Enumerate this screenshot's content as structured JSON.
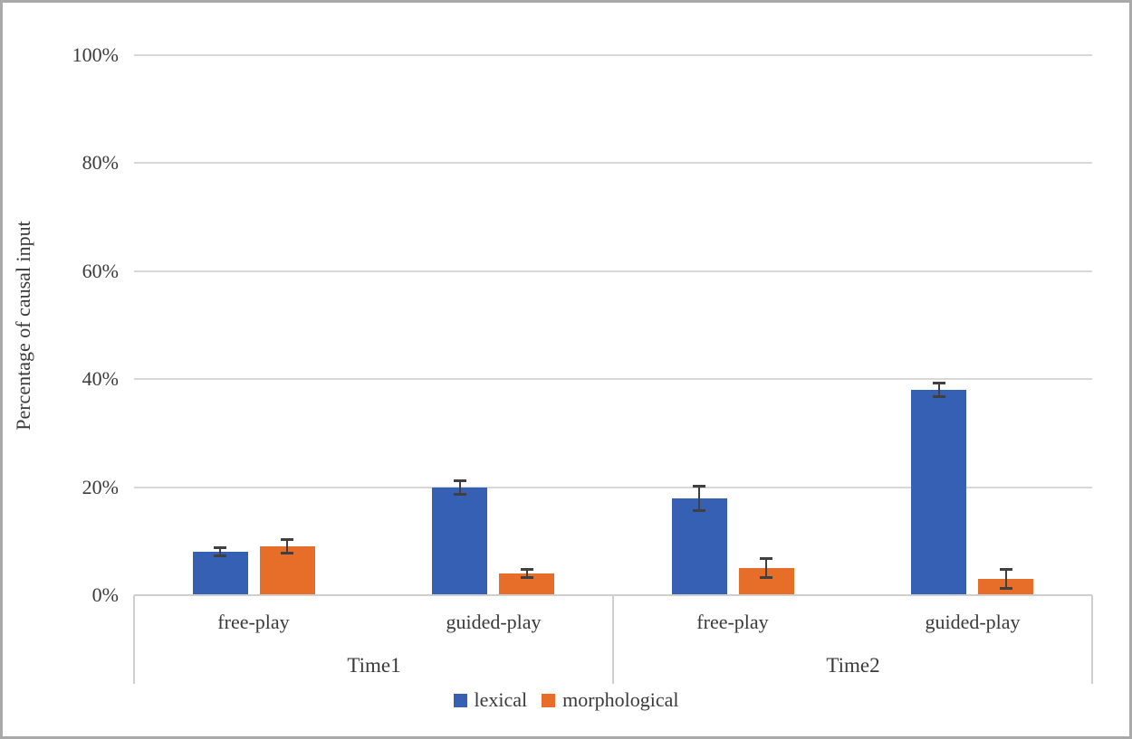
{
  "figure": {
    "background": "#ffffff",
    "border_color": "#a9a9a9"
  },
  "chart_data": {
    "type": "bar",
    "title": "",
    "xlabel": "",
    "ylabel": "Percentage of causal input",
    "ylim": [
      0,
      100
    ],
    "yticks": [
      0,
      20,
      40,
      60,
      80,
      100
    ],
    "ytick_labels": [
      "0%",
      "20%",
      "40%",
      "60%",
      "80%",
      "100%"
    ],
    "grid": true,
    "gridline_color": "#d8d8d8",
    "error_bar_color": "#404040",
    "x_groups": [
      {
        "label": "Time1",
        "categories": [
          "free-play",
          "guided-play"
        ]
      },
      {
        "label": "Time2",
        "categories": [
          "free-play",
          "guided-play"
        ]
      }
    ],
    "series": [
      {
        "name": "lexical",
        "color": "#3560b4",
        "values": [
          8,
          20,
          18,
          38
        ],
        "errors": [
          1,
          1.5,
          2.5,
          1.5
        ]
      },
      {
        "name": "morphological",
        "color": "#e76e28",
        "values": [
          9,
          4,
          5,
          3
        ],
        "errors": [
          1.5,
          1,
          2,
          2
        ]
      }
    ],
    "legend": {
      "position": "bottom",
      "entries": [
        "lexical",
        "morphological"
      ]
    }
  }
}
